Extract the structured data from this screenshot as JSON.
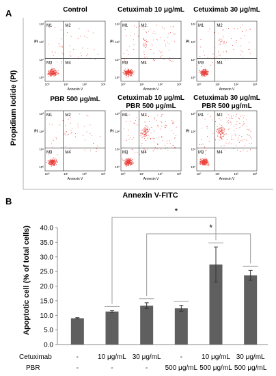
{
  "panel_a": {
    "label": "A",
    "y_axis_title": "Propidium Iodide (PI)",
    "x_axis_title": "Annexin V-FITC",
    "plot_ylabel": "PI",
    "plot_xlabel": "Annexin V",
    "quadrants": [
      "M1",
      "M2",
      "M3",
      "M4"
    ],
    "yticks": [
      "10³",
      "10²",
      "10¹",
      "10⁰"
    ],
    "xticks": [
      "10⁰",
      "10¹",
      "10²",
      "10³"
    ],
    "colors": {
      "dots": "#e8403a",
      "frame": "#444444"
    },
    "plots": [
      {
        "title1": "Control",
        "title2": ""
      },
      {
        "title1": "Cetuximab 10 μg/mL",
        "title2": ""
      },
      {
        "title1": "Cetuximab 30 μg/mL",
        "title2": ""
      },
      {
        "title1": "PBR 500 μg/mL",
        "title2": ""
      },
      {
        "title1": "Cetuximab 10 μg/mL",
        "title2": "PBR 500 μg/mL"
      },
      {
        "title1": "Cetuximab 30 μg/mL",
        "title2": "PBR 500 μg/mL"
      }
    ]
  },
  "chart_data": {
    "type": "bar",
    "panel_label": "B",
    "ylabel": "Apoptotic cell (% of total cells)",
    "ylim": [
      0,
      40
    ],
    "yticks": [
      "0.0",
      "5.0",
      "10.0",
      "15.0",
      "20.0",
      "25.0",
      "30.0",
      "35.0",
      "40.0"
    ],
    "values": [
      9.0,
      11.3,
      13.3,
      12.4,
      27.4,
      23.7
    ],
    "errors": [
      0.2,
      0.3,
      1.0,
      1.0,
      6.0,
      1.7
    ],
    "bar_color": "#5f5f5f",
    "row_labels": [
      "Cetuximab",
      "PBR"
    ],
    "cetuximab": [
      "-",
      "10 μg/mL",
      "30 μg/mL",
      "-",
      "10 μg/mL",
      "30 μg/mL"
    ],
    "pbr": [
      "-",
      "-",
      "-",
      "500 μg/mL",
      "500 μg/mL",
      "500 μg/mL"
    ],
    "significance": [
      "*",
      "*"
    ]
  }
}
